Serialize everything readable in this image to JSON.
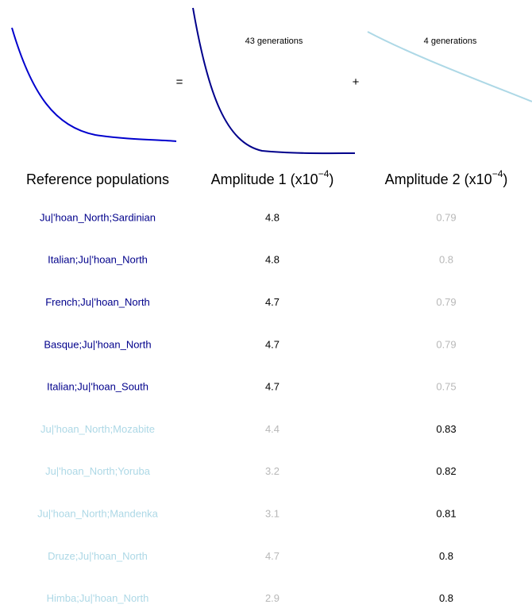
{
  "equation": {
    "equals": "=",
    "plus": "+",
    "component_1_label": "43 generations",
    "component_2_label": "4 generations"
  },
  "table": {
    "headers": [
      {
        "text": "Reference populations"
      },
      {
        "text": "Amplitude 1 (x10",
        "exponent": "−4",
        "suffix": ")"
      },
      {
        "text": "Amplitude 2 (x10",
        "exponent": "−4",
        "suffix": ")"
      }
    ],
    "groups": [
      {
        "color": "#00008b",
        "rows": [
          [
            "Ju|'hoan_North;Sardinian",
            4.8,
            0.79
          ],
          [
            "Italian;Ju|'hoan_North",
            4.8,
            0.8
          ],
          [
            "French;Ju|'hoan_North",
            4.7,
            0.79
          ],
          [
            "Basque;Ju|'hoan_North",
            4.7,
            0.79
          ],
          [
            "Italian;Ju|'hoan_South",
            4.7,
            0.75
          ]
        ]
      },
      {
        "color": "#add8e6",
        "rows": [
          [
            "Ju|'hoan_North;Mozabite",
            4.4,
            0.83
          ],
          [
            "Ju|'hoan_North;Yoruba",
            3.2,
            0.82
          ],
          [
            "Ju|'hoan_North;Mandenka",
            3.1,
            0.81
          ],
          [
            "Druze;Ju|'hoan_North",
            4.7,
            0.8
          ],
          [
            "Himba;Ju|'hoan_North",
            2.9,
            0.8
          ]
        ]
      }
    ]
  }
}
